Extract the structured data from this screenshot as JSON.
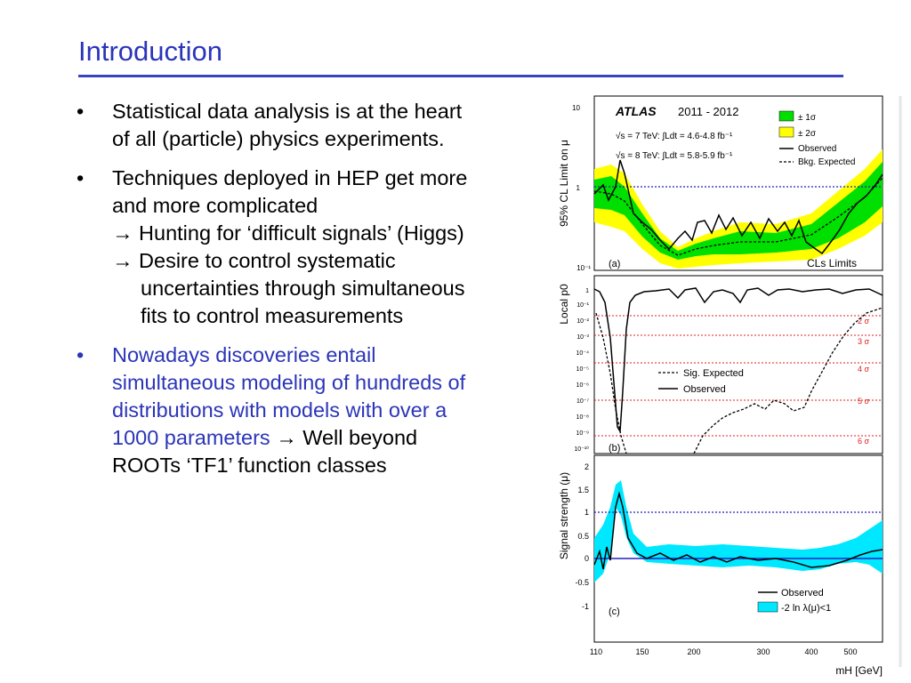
{
  "slide": {
    "title": "Introduction"
  },
  "bullets": [
    {
      "text": "Statistical data analysis is at the heart of all (particle) physics experiments."
    },
    {
      "text": "Techniques deployed in HEP get more and more complicated",
      "subs": [
        "Hunting for ‘difficult signals’ (Higgs)",
        "Desire to control systematic uncertainties through simultaneous fits to control measurements"
      ]
    },
    {
      "text_blue": "Nowadays discoveries entail simultaneous modeling of hundreds of distributions with models with over a 1000 parameters",
      "text_tail": "Well beyond ROOTs ‘TF1’ function classes"
    }
  ],
  "arrow_glyph": "→",
  "bullet_glyph": "•",
  "figure": {
    "experiment": "ATLAS",
    "years": "2011 - 2012",
    "lumi_7": "√s = 7 TeV: ∫Ldt = 4.6-4.8 fb⁻¹",
    "lumi_8": "√s = 8 TeV: ∫Ldt = 5.8-5.9 fb⁻¹",
    "xlabel": "mH [GeV]",
    "xticks": [
      "110",
      "150",
      "200",
      "300",
      "400",
      "500"
    ],
    "colors": {
      "one_sigma": "#00e000",
      "two_sigma": "#ffff00",
      "signal_band": "#00e8ff",
      "ref_line": "#2020c0",
      "sigma_line": "#e02020"
    },
    "panel_a": {
      "tag": "(a)",
      "ylabel": "95% CL Limit on μ",
      "method": "CLs Limits",
      "yticks": [
        "10",
        "1",
        "10⁻¹"
      ],
      "legend": [
        "± 1σ",
        "± 2σ",
        "Observed",
        "Bkg. Expected"
      ]
    },
    "panel_b": {
      "tag": "(b)",
      "ylabel": "Local p0",
      "yticks": [
        "1",
        "10⁻¹",
        "10⁻²",
        "10⁻³",
        "10⁻⁴",
        "10⁻⁵",
        "10⁻⁶",
        "10⁻⁷",
        "10⁻⁸",
        "10⁻⁹",
        "10⁻¹⁰"
      ],
      "sigma_labels": [
        "2 σ",
        "3 σ",
        "4 σ",
        "5 σ",
        "6 σ"
      ],
      "legend": [
        "Sig. Expected",
        "Observed"
      ]
    },
    "panel_c": {
      "tag": "(c)",
      "ylabel": "Signal strength (μ)",
      "yticks": [
        "2",
        "1.5",
        "1",
        "0.5",
        "0",
        "-0.5",
        "-1"
      ],
      "legend": [
        "Observed",
        "-2 ln λ(μ)<1"
      ]
    }
  }
}
